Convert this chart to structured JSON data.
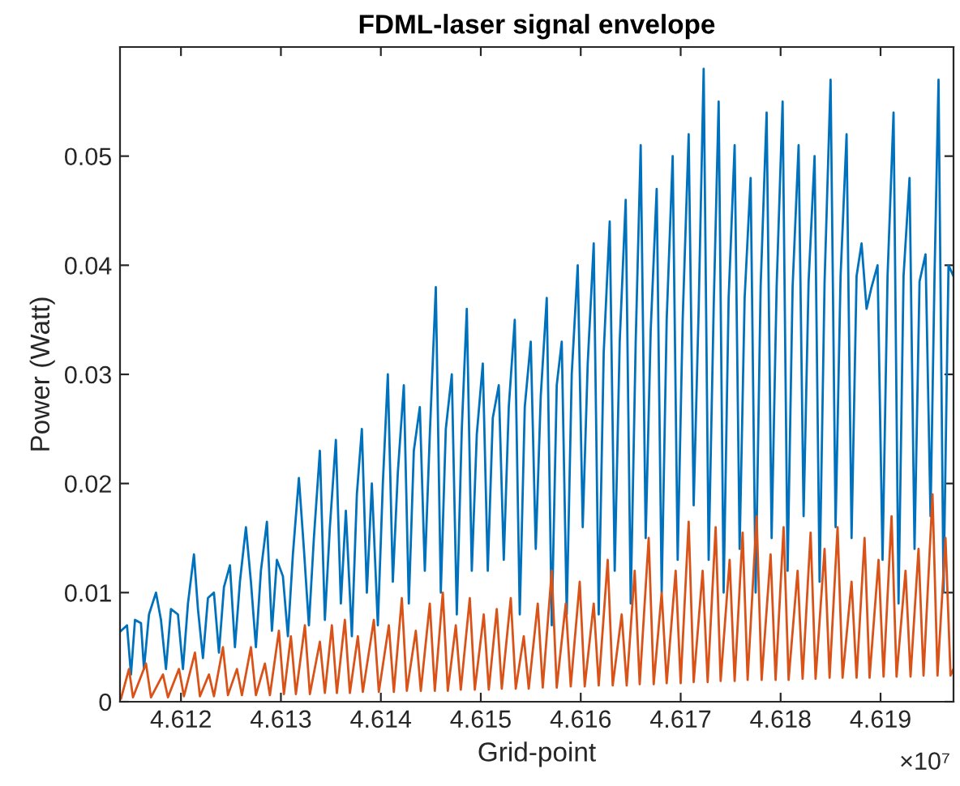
{
  "chart_data": {
    "type": "line",
    "title": "FDML-laser signal envelope",
    "xlabel": "Grid-point",
    "ylabel": "Power (Watt)",
    "annotations": [
      "×10⁷"
    ],
    "xlim": [
      4.61139,
      4.61973
    ],
    "ylim": [
      0,
      0.06
    ],
    "xticks": [
      4.612,
      4.613,
      4.614,
      4.615,
      4.616,
      4.617,
      4.618,
      4.619
    ],
    "yticks": [
      0,
      0.01,
      0.02,
      0.03,
      0.04,
      0.05
    ],
    "series": [
      {
        "color": "#0072bd",
        "x": [
          4.6114,
          4.61146,
          4.6115,
          4.61154,
          4.6116,
          4.61163,
          4.61168,
          4.61175,
          4.6118,
          4.61185,
          4.6119,
          4.61197,
          4.61202,
          4.61207,
          4.61213,
          4.61217,
          4.61222,
          4.61227,
          4.61233,
          4.61238,
          4.61243,
          4.61249,
          4.61254,
          4.61259,
          4.61265,
          4.6127,
          4.61275,
          4.6128,
          4.61286,
          4.61291,
          4.61296,
          4.61302,
          4.61307,
          4.61312,
          4.61318,
          4.61323,
          4.61328,
          4.61333,
          4.61339,
          4.61344,
          4.61349,
          4.61355,
          4.6136,
          4.61365,
          4.61371,
          4.61376,
          4.61381,
          4.61386,
          4.61391,
          4.61397,
          4.61402,
          4.61407,
          4.61412,
          4.61417,
          4.61423,
          4.61428,
          4.61433,
          4.61439,
          4.61444,
          4.61449,
          4.61455,
          4.6146,
          4.61465,
          4.61471,
          4.61476,
          4.61481,
          4.61486,
          4.61491,
          4.61496,
          4.61502,
          4.61507,
          4.61512,
          4.61518,
          4.61523,
          4.61528,
          4.61534,
          4.61539,
          4.61544,
          4.6155,
          4.61555,
          4.6156,
          4.61566,
          4.61571,
          4.61576,
          4.61581,
          4.61586,
          4.61591,
          4.61597,
          4.61602,
          4.61607,
          4.61613,
          4.61618,
          4.61623,
          4.61629,
          4.61634,
          4.61639,
          4.61645,
          4.6165,
          4.61655,
          4.6166,
          4.61665,
          4.6167,
          4.61676,
          4.61681,
          4.61686,
          4.61692,
          4.61697,
          4.61702,
          4.61708,
          4.61713,
          4.61718,
          4.61723,
          4.61728,
          4.61733,
          4.61738,
          4.61743,
          4.61748,
          4.61754,
          4.61759,
          4.61764,
          4.6177,
          4.61775,
          4.6178,
          4.61786,
          4.61791,
          4.61796,
          4.61802,
          4.61807,
          4.61812,
          4.61818,
          4.61823,
          4.61828,
          4.61834,
          4.61839,
          4.61844,
          4.6185,
          4.61855,
          4.6186,
          4.61866,
          4.61871,
          4.61876,
          4.61881,
          4.61886,
          4.61891,
          4.61897,
          4.61902,
          4.61907,
          4.61913,
          4.61918,
          4.61923,
          4.61929,
          4.61934,
          4.61939,
          4.61945,
          4.6195,
          4.61954,
          4.61958,
          4.61963,
          4.61968,
          4.61973
        ],
        "values": [
          0.0065,
          0.007,
          0.0025,
          0.0075,
          0.0072,
          0.003,
          0.008,
          0.01,
          0.0075,
          0.003,
          0.0085,
          0.008,
          0.003,
          0.009,
          0.0135,
          0.0085,
          0.004,
          0.0095,
          0.01,
          0.0045,
          0.0105,
          0.0125,
          0.005,
          0.011,
          0.016,
          0.011,
          0.005,
          0.012,
          0.0165,
          0.0065,
          0.013,
          0.0115,
          0.006,
          0.0135,
          0.0205,
          0.014,
          0.007,
          0.015,
          0.023,
          0.0075,
          0.016,
          0.024,
          0.009,
          0.0175,
          0.006,
          0.019,
          0.025,
          0.01,
          0.02,
          0.007,
          0.02,
          0.03,
          0.011,
          0.021,
          0.029,
          0.009,
          0.023,
          0.027,
          0.012,
          0.0245,
          0.038,
          0.01,
          0.025,
          0.03,
          0.008,
          0.025,
          0.036,
          0.012,
          0.0245,
          0.031,
          0.012,
          0.026,
          0.029,
          0.013,
          0.027,
          0.035,
          0.008,
          0.027,
          0.033,
          0.014,
          0.028,
          0.037,
          0.007,
          0.029,
          0.033,
          0.008,
          0.03,
          0.04,
          0.016,
          0.031,
          0.042,
          0.008,
          0.032,
          0.044,
          0.012,
          0.033,
          0.046,
          0.009,
          0.033,
          0.051,
          0.015,
          0.034,
          0.047,
          0.01,
          0.035,
          0.05,
          0.013,
          0.035,
          0.052,
          0.018,
          0.036,
          0.058,
          0.013,
          0.036,
          0.055,
          0.01,
          0.037,
          0.051,
          0.014,
          0.037,
          0.048,
          0.01,
          0.038,
          0.054,
          0.015,
          0.038,
          0.055,
          0.012,
          0.038,
          0.051,
          0.017,
          0.0385,
          0.05,
          0.011,
          0.0385,
          0.057,
          0.016,
          0.039,
          0.052,
          0.015,
          0.039,
          0.042,
          0.036,
          0.038,
          0.04,
          0.013,
          0.039,
          0.054,
          0.009,
          0.039,
          0.048,
          0.014,
          0.0385,
          0.041,
          0.017,
          0.039,
          0.057,
          0.01,
          0.04,
          0.039
        ]
      },
      {
        "color": "#d95319",
        "x": [
          4.6114,
          4.61148,
          4.61152,
          4.61165,
          4.6117,
          4.61182,
          4.61187,
          4.61198,
          4.61203,
          4.61214,
          4.61219,
          4.61228,
          4.61233,
          4.61242,
          4.61247,
          4.61256,
          4.61261,
          4.6127,
          4.61275,
          4.61284,
          4.61289,
          4.61298,
          4.61303,
          4.6131,
          4.61315,
          4.61324,
          4.61329,
          4.61339,
          4.61344,
          4.61351,
          4.61356,
          4.61364,
          4.61369,
          4.61377,
          4.61382,
          4.61393,
          4.61398,
          4.61408,
          4.61413,
          4.61421,
          4.61426,
          4.61435,
          4.6144,
          4.61449,
          4.61454,
          4.61462,
          4.61467,
          4.61475,
          4.6148,
          4.61489,
          4.61494,
          4.61503,
          4.61508,
          4.61516,
          4.61521,
          4.6153,
          4.61535,
          4.61543,
          4.61548,
          4.61557,
          4.61562,
          4.61571,
          4.61576,
          4.61585,
          4.6159,
          4.61599,
          4.61604,
          4.61613,
          4.61618,
          4.61627,
          4.61632,
          4.61641,
          4.61646,
          4.61654,
          4.61659,
          4.61668,
          4.61673,
          4.61681,
          4.61686,
          4.61695,
          4.617,
          4.61708,
          4.61713,
          4.61722,
          4.61727,
          4.61735,
          4.6174,
          4.61749,
          4.61754,
          4.61762,
          4.61767,
          4.61776,
          4.61781,
          4.6179,
          4.61795,
          4.61803,
          4.61808,
          4.61817,
          4.61822,
          4.6183,
          4.61835,
          4.61844,
          4.61849,
          4.61857,
          4.61862,
          4.61871,
          4.61876,
          4.61884,
          4.61889,
          4.61898,
          4.61903,
          4.61911,
          4.61916,
          4.61925,
          4.6193,
          4.61938,
          4.61943,
          4.61952,
          4.61957,
          4.61965,
          4.6197,
          4.61973
        ],
        "values": [
          0.0003,
          0.003,
          0.0004,
          0.0035,
          0.0004,
          0.0025,
          0.0004,
          0.003,
          0.0005,
          0.0045,
          0.0005,
          0.0025,
          0.0005,
          0.005,
          0.0006,
          0.003,
          0.0006,
          0.005,
          0.0006,
          0.0035,
          0.0006,
          0.0065,
          0.0007,
          0.006,
          0.0007,
          0.007,
          0.0007,
          0.0055,
          0.0008,
          0.007,
          0.0008,
          0.0075,
          0.0008,
          0.006,
          0.0009,
          0.0075,
          0.0009,
          0.007,
          0.0009,
          0.0095,
          0.001,
          0.0065,
          0.001,
          0.009,
          0.001,
          0.01,
          0.001,
          0.007,
          0.0011,
          0.0095,
          0.0011,
          0.008,
          0.0011,
          0.0085,
          0.0012,
          0.0095,
          0.0012,
          0.006,
          0.0012,
          0.009,
          0.0013,
          0.012,
          0.0013,
          0.009,
          0.0014,
          0.011,
          0.0014,
          0.009,
          0.0015,
          0.013,
          0.0015,
          0.008,
          0.0015,
          0.012,
          0.0016,
          0.015,
          0.0016,
          0.01,
          0.0017,
          0.012,
          0.0017,
          0.0165,
          0.0018,
          0.012,
          0.0018,
          0.016,
          0.0019,
          0.013,
          0.0019,
          0.0155,
          0.002,
          0.017,
          0.002,
          0.0135,
          0.002,
          0.016,
          0.002,
          0.012,
          0.0021,
          0.0155,
          0.0021,
          0.014,
          0.0022,
          0.016,
          0.0022,
          0.011,
          0.0022,
          0.015,
          0.0022,
          0.013,
          0.0023,
          0.017,
          0.0023,
          0.012,
          0.0023,
          0.014,
          0.0024,
          0.019,
          0.0024,
          0.015,
          0.0024,
          0.003
        ]
      }
    ]
  }
}
